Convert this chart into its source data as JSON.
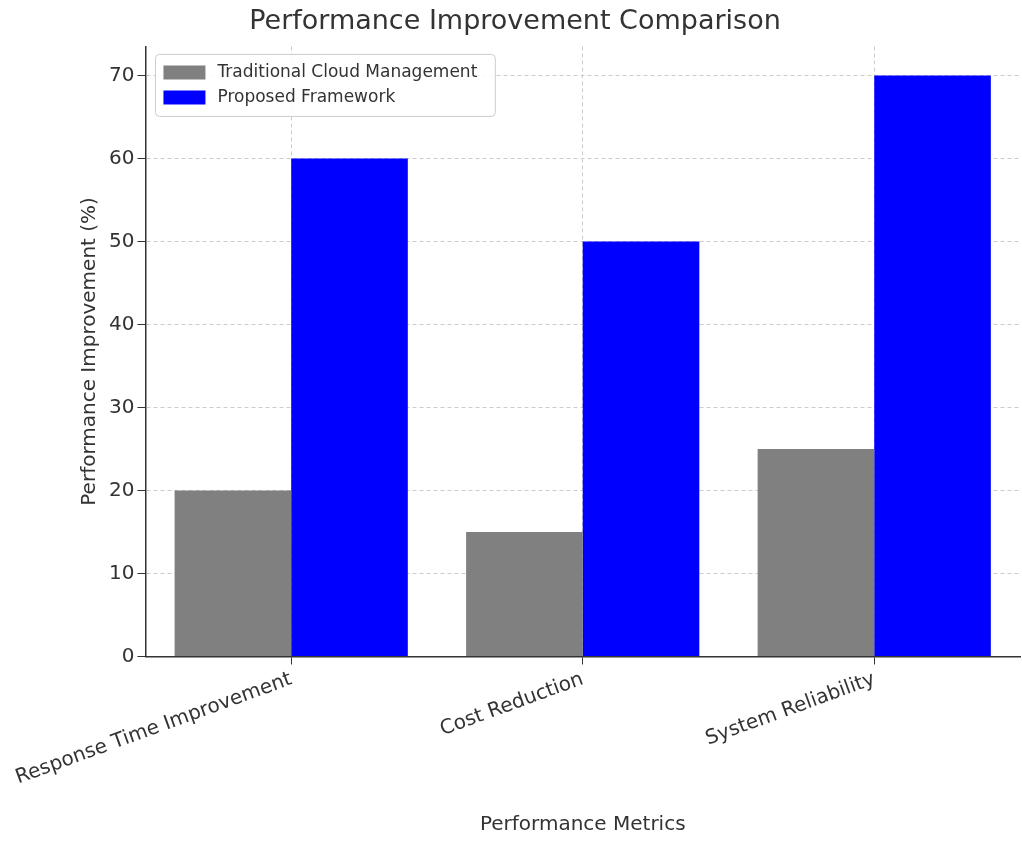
{
  "chart_data": {
    "type": "bar",
    "title": "Performance Improvement Comparison",
    "xlabel": "Performance Metrics",
    "ylabel": "Performance Improvement (%)",
    "categories": [
      "Response Time Improvement",
      "Cost Reduction",
      "System Reliability"
    ],
    "series": [
      {
        "name": "Traditional Cloud Management",
        "color": "#808080",
        "values": [
          20,
          15,
          25
        ]
      },
      {
        "name": "Proposed Framework",
        "color": "#0000ff",
        "values": [
          60,
          50,
          70
        ]
      }
    ],
    "ylim": [
      0,
      73.5
    ],
    "yticks": [
      0,
      10,
      20,
      30,
      40,
      50,
      60,
      70
    ],
    "grid": true,
    "legend": "top left"
  }
}
